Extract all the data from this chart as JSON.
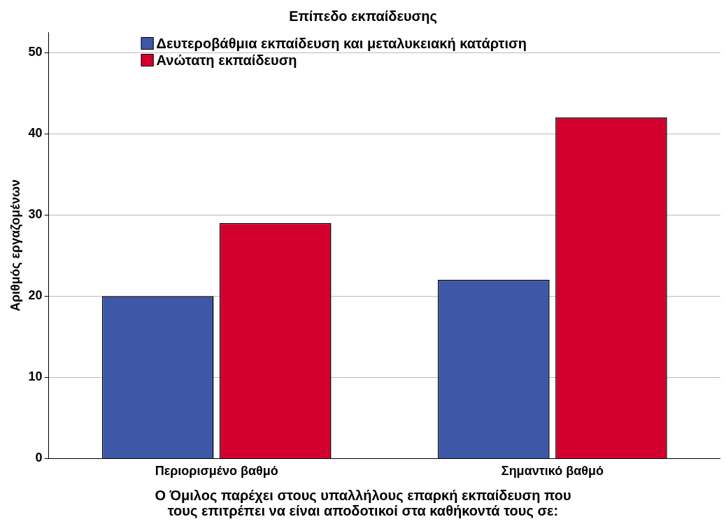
{
  "chart_data": {
    "type": "bar",
    "legend_title": "Επίπεδο εκπαίδευσης",
    "xlabel": "Ο Όμιλος παρέχει στους υπαλλήλους επαρκή εκπαίδευση που τους επιτρέπει να είναι αποδοτικοί στα καθήκοντά τους σε:",
    "ylabel": "Αριθμός εργαζομένων",
    "categories": [
      "Περιορισμένο βαθμό",
      "Σημαντικό βαθμό"
    ],
    "series": [
      {
        "name": "Δευτεροβάθμια εκπαίδευση και μεταλυκειακή κατάρτιση",
        "color": "#3e58a8",
        "values": [
          20,
          22
        ]
      },
      {
        "name": "Ανώτατη εκπαίδευση",
        "color": "#d3002e",
        "values": [
          29,
          42
        ]
      }
    ],
    "ylim": [
      0,
      52.5
    ],
    "yticks": [
      0,
      10,
      20,
      30,
      40,
      50
    ],
    "grid": "y",
    "legend": "top left"
  }
}
